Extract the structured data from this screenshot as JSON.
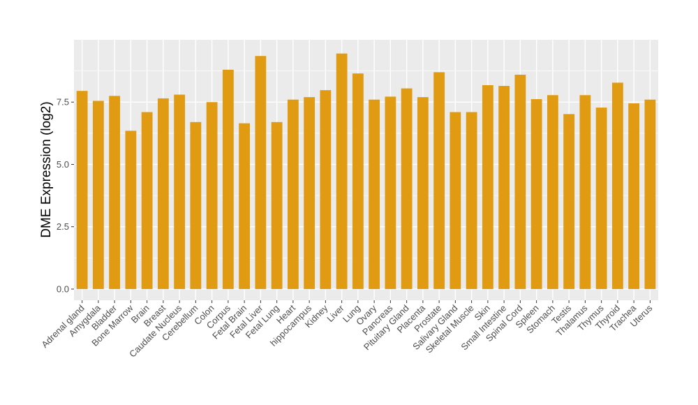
{
  "chart_data": {
    "type": "bar",
    "title": "",
    "xlabel": "",
    "ylabel": "DME Expression (log2)",
    "ylim": [
      -0.45,
      10.0
    ],
    "yticks": [
      0.0,
      2.5,
      5.0,
      7.5
    ],
    "ytick_labels": [
      "0.0",
      "2.5",
      "5.0",
      "7.5"
    ],
    "grid": true,
    "legend": "none",
    "bar_color": "#E09B13",
    "panel_color": "#EBEBEB",
    "grid_color": "#FFFFFF",
    "categories": [
      "Adrenal gland",
      "Amygdala",
      "Bladder",
      "Bone Marrow",
      "Brain",
      "Breast",
      "Caudate Nucleus",
      "Cerebellum",
      "Colon",
      "Corpus",
      "Fetal Brain",
      "Fetal Liver",
      "Fetal Lung",
      "Heart",
      "hippocampus",
      "Kidney",
      "Liver",
      "Lung",
      "Ovary",
      "Pancreas",
      "Pituitary Gland",
      "Placenta",
      "Prostate",
      "Salivary Gland",
      "Skeletal Muscle",
      "Skin",
      "Small Intestine",
      "Spinal Cord",
      "Spleen",
      "Stomach",
      "Testis",
      "Thalamus",
      "Thymus",
      "Thyroid",
      "Trachea",
      "Uterus"
    ],
    "values": [
      7.95,
      7.55,
      7.75,
      6.35,
      7.1,
      7.65,
      7.8,
      6.7,
      7.5,
      8.8,
      6.65,
      9.35,
      6.7,
      7.6,
      7.7,
      7.98,
      9.45,
      8.65,
      7.6,
      7.72,
      8.05,
      7.7,
      8.7,
      7.1,
      7.1,
      8.18,
      8.15,
      8.6,
      7.62,
      7.78,
      7.02,
      7.78,
      7.28,
      8.28,
      7.45,
      7.6
    ]
  }
}
